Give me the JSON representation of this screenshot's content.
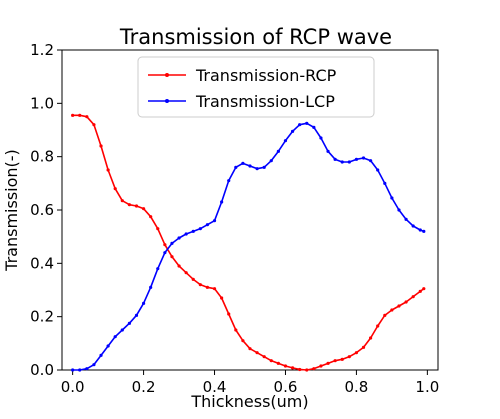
{
  "chart_data": {
    "type": "line",
    "title": "Transmission of RCP wave",
    "xlabel": "Thickness(um)",
    "ylabel": "Transmission(-)",
    "xlim": [
      -0.03,
      1.03
    ],
    "ylim": [
      0.0,
      1.2
    ],
    "xticks": [
      "0.0",
      "0.2",
      "0.4",
      "0.6",
      "0.8",
      "1.0"
    ],
    "yticks": [
      "0.0",
      "0.2",
      "0.4",
      "0.6",
      "0.8",
      "1.0",
      "1.2"
    ],
    "grid": false,
    "legend_position": "top-center",
    "series": [
      {
        "name": "Transmission-RCP",
        "color": "#ff0000",
        "x": [
          0.0,
          0.02,
          0.04,
          0.06,
          0.08,
          0.1,
          0.12,
          0.14,
          0.16,
          0.18,
          0.2,
          0.22,
          0.24,
          0.26,
          0.28,
          0.3,
          0.32,
          0.34,
          0.36,
          0.38,
          0.4,
          0.42,
          0.44,
          0.46,
          0.48,
          0.5,
          0.52,
          0.54,
          0.56,
          0.58,
          0.6,
          0.62,
          0.64,
          0.66,
          0.68,
          0.7,
          0.72,
          0.74,
          0.76,
          0.78,
          0.8,
          0.82,
          0.84,
          0.86,
          0.88,
          0.9,
          0.92,
          0.94,
          0.96,
          0.98,
          0.99
        ],
        "values": [
          0.955,
          0.955,
          0.95,
          0.92,
          0.84,
          0.75,
          0.68,
          0.635,
          0.62,
          0.615,
          0.605,
          0.575,
          0.53,
          0.47,
          0.425,
          0.39,
          0.365,
          0.34,
          0.32,
          0.31,
          0.305,
          0.27,
          0.21,
          0.15,
          0.11,
          0.08,
          0.065,
          0.05,
          0.035,
          0.025,
          0.015,
          0.008,
          0.002,
          0.0,
          0.005,
          0.015,
          0.025,
          0.035,
          0.04,
          0.05,
          0.065,
          0.085,
          0.12,
          0.165,
          0.205,
          0.225,
          0.24,
          0.255,
          0.275,
          0.295,
          0.305
        ]
      },
      {
        "name": "Transmission-LCP",
        "color": "#0000ff",
        "x": [
          0.0,
          0.02,
          0.04,
          0.06,
          0.08,
          0.1,
          0.12,
          0.14,
          0.16,
          0.18,
          0.2,
          0.22,
          0.24,
          0.26,
          0.28,
          0.3,
          0.32,
          0.34,
          0.36,
          0.38,
          0.4,
          0.42,
          0.44,
          0.46,
          0.48,
          0.5,
          0.52,
          0.54,
          0.56,
          0.58,
          0.6,
          0.62,
          0.64,
          0.66,
          0.68,
          0.7,
          0.72,
          0.74,
          0.76,
          0.78,
          0.8,
          0.82,
          0.84,
          0.86,
          0.88,
          0.9,
          0.92,
          0.94,
          0.96,
          0.98,
          0.99
        ],
        "values": [
          0.0,
          0.0,
          0.005,
          0.02,
          0.055,
          0.09,
          0.125,
          0.15,
          0.175,
          0.205,
          0.25,
          0.31,
          0.38,
          0.44,
          0.475,
          0.495,
          0.51,
          0.52,
          0.53,
          0.545,
          0.56,
          0.63,
          0.71,
          0.76,
          0.775,
          0.765,
          0.755,
          0.76,
          0.785,
          0.82,
          0.86,
          0.895,
          0.92,
          0.925,
          0.91,
          0.87,
          0.82,
          0.79,
          0.78,
          0.78,
          0.79,
          0.795,
          0.785,
          0.75,
          0.7,
          0.645,
          0.6,
          0.565,
          0.54,
          0.525,
          0.52
        ]
      }
    ]
  }
}
